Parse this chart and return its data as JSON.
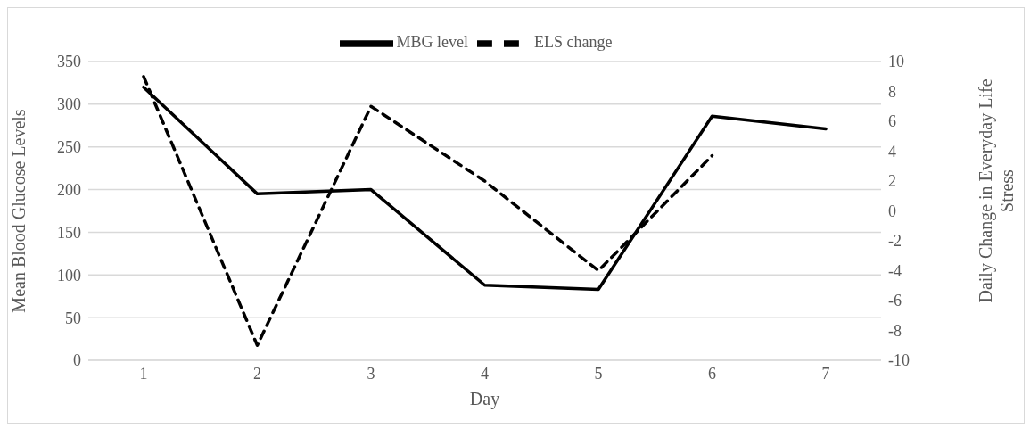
{
  "chart_data": {
    "type": "line",
    "xlabel": "Day",
    "ylabel": "Mean Blood Glucose Levels",
    "y2label": "Daily Change in Everyday Life Stress",
    "categories": [
      "1",
      "2",
      "3",
      "4",
      "5",
      "6",
      "7"
    ],
    "series": [
      {
        "name": "MBG level",
        "color": "#000000",
        "line_style": "solid",
        "values": [
          320,
          195,
          200,
          88,
          83,
          286,
          271
        ]
      },
      {
        "name": "ELS change",
        "color": "#000000",
        "line_style": "dashed",
        "axis": "y2",
        "values": [
          9,
          -9,
          7,
          2,
          -4,
          3.7,
          null
        ]
      }
    ],
    "ylim": [
      0,
      350
    ],
    "yticks": [
      0,
      50,
      100,
      150,
      200,
      250,
      300,
      350
    ],
    "y2lim": [
      -10,
      10
    ],
    "y2ticks": [
      -10,
      -8,
      -6,
      -4,
      -2,
      0,
      2,
      4,
      6,
      8,
      10
    ],
    "grid": "y",
    "legend": "top",
    "marker": "none"
  }
}
